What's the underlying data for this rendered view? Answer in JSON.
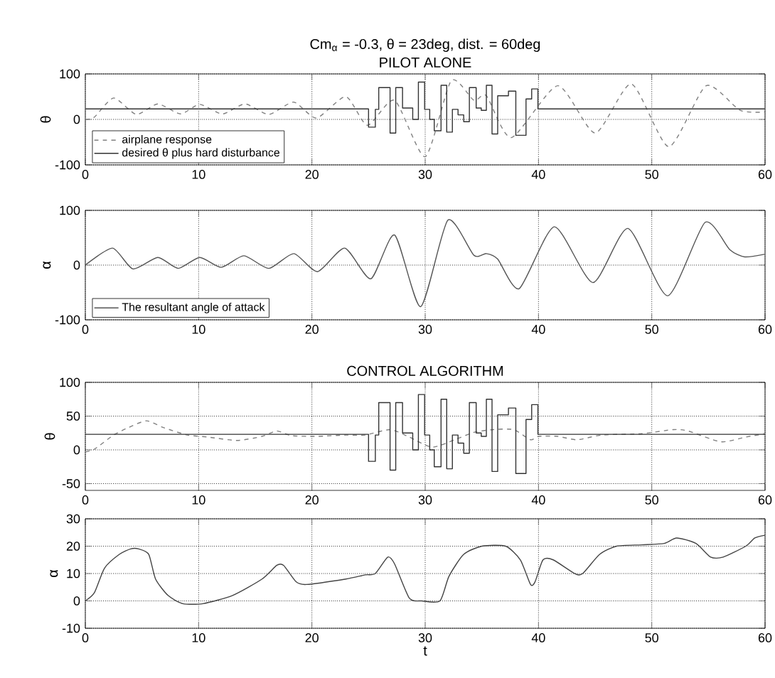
{
  "chart_data": [
    {
      "type": "line",
      "title": "Cm$_{α}$ = -0.3, θ = 23deg, dist. = 60deg",
      "subtitle": "PILOT ALONE",
      "ylabel": "θ",
      "xlim": [
        0,
        60
      ],
      "ylim": [
        -100,
        100
      ],
      "xticks": [
        0,
        10,
        20,
        30,
        40,
        50,
        60
      ],
      "yticks": [
        -100,
        0,
        100
      ],
      "grid": true,
      "legend": "bottom left",
      "series": [
        {
          "name": "airplane response",
          "color": "#808080",
          "line_style": "dashed",
          "x": [
            0,
            0.8,
            2.5,
            4.5,
            6.4,
            8.4,
            10.1,
            12.1,
            14.1,
            16.2,
            18.4,
            20.4,
            23.0,
            24.9,
            27.3,
            30.0,
            32.3,
            34.3,
            35.4,
            37.6,
            41.7,
            45.0,
            48.2,
            51.5,
            54.8,
            57.8,
            60
          ],
          "values": [
            0,
            5,
            47,
            11,
            34,
            12,
            33,
            12,
            34,
            11,
            38,
            3,
            50,
            -13,
            42,
            -82,
            85,
            42,
            52,
            -40,
            74,
            -30,
            78,
            -60,
            74,
            20,
            16
          ]
        },
        {
          "name": "desired θ plus hard disturbance",
          "type": "step",
          "color": "#333333",
          "line_style": "solid",
          "x": [
            0,
            25.0,
            25.6,
            25.9,
            26.9,
            27.4,
            28.0,
            28.9,
            29.4,
            29.95,
            30.4,
            30.8,
            31.4,
            31.9,
            32.4,
            32.9,
            33.4,
            33.9,
            34.5,
            34.95,
            35.4,
            35.9,
            36.4,
            37.35,
            38.0,
            38.9,
            39.4,
            39.95,
            60
          ],
          "values": [
            23,
            -17,
            22,
            70,
            -30,
            70,
            25,
            0,
            82,
            22,
            0,
            -25,
            75,
            -28,
            22,
            10,
            -5,
            70,
            25,
            20,
            75,
            -32,
            52,
            62,
            -35,
            45,
            67,
            23,
            23
          ]
        }
      ]
    },
    {
      "type": "line",
      "ylabel": "α",
      "xlim": [
        0,
        60
      ],
      "ylim": [
        -100,
        100
      ],
      "xticks": [
        0,
        10,
        20,
        30,
        40,
        50,
        60
      ],
      "yticks": [
        -100,
        0,
        100
      ],
      "grid": true,
      "legend": "bottom left",
      "series": [
        {
          "name": "The resultant angle of attack",
          "color": "#555555",
          "line_style": "solid",
          "x": [
            0,
            2.4,
            4.2,
            6.4,
            8.2,
            10.1,
            12.0,
            14.0,
            16.2,
            18.4,
            20.5,
            22.9,
            25.2,
            27.3,
            29.6,
            32.0,
            34.3,
            35.4,
            36.4,
            38.3,
            41.4,
            44.8,
            47.9,
            51.4,
            54.7,
            56.9,
            58.2,
            60
          ],
          "values": [
            0,
            31,
            -7,
            14,
            -6,
            14,
            -4,
            17,
            -6,
            21,
            -12,
            31,
            -25,
            55,
            -76,
            82,
            18,
            21,
            11,
            -43,
            70,
            -32,
            67,
            -56,
            78,
            28,
            15,
            20
          ]
        }
      ]
    },
    {
      "type": "line",
      "title": "CONTROL ALGORITHM",
      "ylabel": "θ",
      "xlim": [
        0,
        60
      ],
      "ylim": [
        -60,
        100
      ],
      "xticks": [
        0,
        10,
        20,
        30,
        40,
        50,
        60
      ],
      "yticks": [
        -50,
        0,
        50,
        100
      ],
      "grid": true,
      "series": [
        {
          "color": "#808080",
          "line_style": "dashed",
          "x": [
            0,
            0.8,
            2.5,
            3.8,
            5.4,
            6.9,
            9.0,
            10.8,
            13.4,
            15.6,
            16.9,
            18.2,
            20.4,
            23.0,
            24.7,
            26.9,
            28.6,
            30.6,
            32.6,
            34.3,
            36.0,
            37.8,
            39.3,
            40.0,
            41.7,
            43.4,
            45.6,
            49.1,
            51.9,
            53.2,
            56.1,
            58.3,
            60
          ],
          "values": [
            -3,
            1,
            22,
            33,
            43,
            33,
            22,
            19,
            14,
            20,
            28,
            21,
            20,
            22,
            22,
            30,
            19,
            4,
            15,
            26,
            30,
            30,
            15,
            20,
            20,
            15,
            22,
            24,
            30,
            28,
            12,
            19,
            24
          ]
        },
        {
          "type": "step",
          "color": "#333333",
          "line_style": "solid",
          "x": [
            0,
            25.0,
            25.6,
            25.9,
            26.9,
            27.4,
            28.0,
            28.9,
            29.4,
            29.95,
            30.4,
            30.8,
            31.4,
            31.9,
            32.4,
            32.9,
            33.4,
            33.9,
            34.5,
            34.95,
            35.4,
            35.9,
            36.4,
            37.35,
            38.0,
            38.9,
            39.4,
            39.95,
            60
          ],
          "values": [
            23,
            -17,
            22,
            70,
            -30,
            70,
            25,
            0,
            82,
            22,
            0,
            -25,
            75,
            -28,
            22,
            10,
            -5,
            70,
            25,
            20,
            75,
            -32,
            52,
            62,
            -35,
            45,
            67,
            23,
            23
          ]
        }
      ]
    },
    {
      "type": "line",
      "xlabel": "t",
      "ylabel": "α",
      "xlim": [
        0,
        60
      ],
      "ylim": [
        -10,
        30
      ],
      "xticks": [
        0,
        10,
        20,
        30,
        40,
        50,
        60
      ],
      "yticks": [
        -10,
        0,
        10,
        20,
        30
      ],
      "grid": true,
      "series": [
        {
          "color": "#444444",
          "line_style": "solid",
          "x": [
            0,
            0.8,
            1.7,
            3.0,
            4.0,
            4.7,
            5.6,
            6.2,
            7.3,
            8.6,
            10.4,
            13.0,
            15.6,
            16.9,
            17.5,
            18.6,
            19.5,
            23.0,
            24.7,
            25.6,
            26.7,
            27.3,
            28.6,
            29.7,
            31.3,
            32.1,
            33.4,
            35.0,
            37.1,
            38.4,
            39.3,
            39.7,
            40.4,
            41.3,
            43.2,
            43.9,
            45.4,
            46.9,
            49.1,
            51.1,
            52.2,
            53.9,
            55.2,
            56.3,
            58.3,
            59.1,
            60
          ],
          "values": [
            0,
            3,
            12,
            17,
            19,
            19,
            17,
            8,
            2,
            -1,
            -1,
            2,
            8,
            13,
            13,
            7,
            6,
            8,
            9.5,
            10,
            16,
            13.5,
            1,
            0,
            0,
            9,
            17,
            20,
            20,
            15,
            6,
            7,
            15,
            15,
            10,
            10,
            17,
            20,
            20.5,
            21,
            23,
            21,
            16,
            16,
            20,
            23,
            24
          ]
        }
      ]
    }
  ]
}
